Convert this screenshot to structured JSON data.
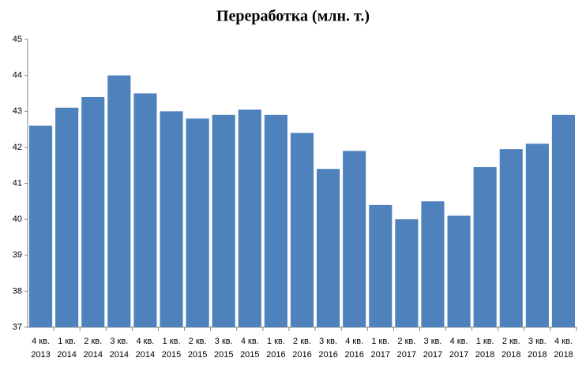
{
  "chart_data": {
    "type": "bar",
    "title": "Переработка (млн. т.)",
    "categories": [
      "4 кв. 2013",
      "1 кв. 2014",
      "2 кв. 2014",
      "3 кв. 2014",
      "4 кв. 2014",
      "1 кв. 2015",
      "2 кв. 2015",
      "3 кв. 2015",
      "4 кв. 2015",
      "1 кв. 2016",
      "2 кв. 2016",
      "3 кв. 2016",
      "4 кв. 2016",
      "1 кв. 2017",
      "2 кв. 2017",
      "3 кв. 2017",
      "4 кв. 2017",
      "1 кв. 2018",
      "2 кв. 2018",
      "3 кв. 2018",
      "4 кв. 2018"
    ],
    "values": [
      42.6,
      43.1,
      43.4,
      44.0,
      43.5,
      43.0,
      42.8,
      42.9,
      43.05,
      42.9,
      42.4,
      41.4,
      41.9,
      40.4,
      40.0,
      40.5,
      40.1,
      41.45,
      41.95,
      42.1,
      42.9
    ],
    "color": "#4f81bd",
    "ylim": [
      37,
      45
    ],
    "yticks": [
      37,
      38,
      39,
      40,
      41,
      42,
      43,
      44,
      45
    ],
    "grid": false
  }
}
